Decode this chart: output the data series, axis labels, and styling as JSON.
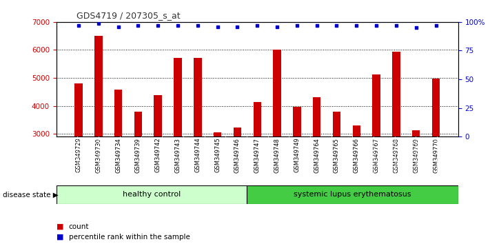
{
  "title": "GDS4719 / 207305_s_at",
  "samples": [
    "GSM349729",
    "GSM349730",
    "GSM349734",
    "GSM349739",
    "GSM349742",
    "GSM349743",
    "GSM349744",
    "GSM349745",
    "GSM349746",
    "GSM349747",
    "GSM349748",
    "GSM349749",
    "GSM349764",
    "GSM349765",
    "GSM349766",
    "GSM349767",
    "GSM349768",
    "GSM349769",
    "GSM349770"
  ],
  "counts": [
    4800,
    6500,
    4580,
    3800,
    4380,
    5720,
    5720,
    3050,
    3230,
    4130,
    6020,
    3960,
    4310,
    3800,
    3300,
    5130,
    5940,
    3120,
    4970
  ],
  "percentiles": [
    97,
    99,
    96,
    97,
    97,
    97,
    97,
    96,
    96,
    97,
    96,
    97,
    97,
    97,
    97,
    97,
    97,
    95,
    97
  ],
  "healthy_count": 9,
  "ylim_left": [
    2900,
    7000
  ],
  "ylim_right": [
    0,
    100
  ],
  "yticks_left": [
    3000,
    4000,
    5000,
    6000,
    7000
  ],
  "yticks_right": [
    0,
    25,
    50,
    75,
    100
  ],
  "bar_color": "#cc0000",
  "dot_color": "#0000cc",
  "healthy_color": "#ccffcc",
  "lupus_color": "#44cc44",
  "sample_bg_color": "#d8d8d8",
  "title_color": "#333333",
  "left_axis_color": "#cc0000",
  "right_axis_color": "#0000cc",
  "healthy_label": "healthy control",
  "lupus_label": "systemic lupus erythematosus",
  "disease_state_label": "disease state",
  "legend_count": "count",
  "legend_percentile": "percentile rank within the sample",
  "fig_width": 7.11,
  "fig_height": 3.54,
  "dpi": 100
}
